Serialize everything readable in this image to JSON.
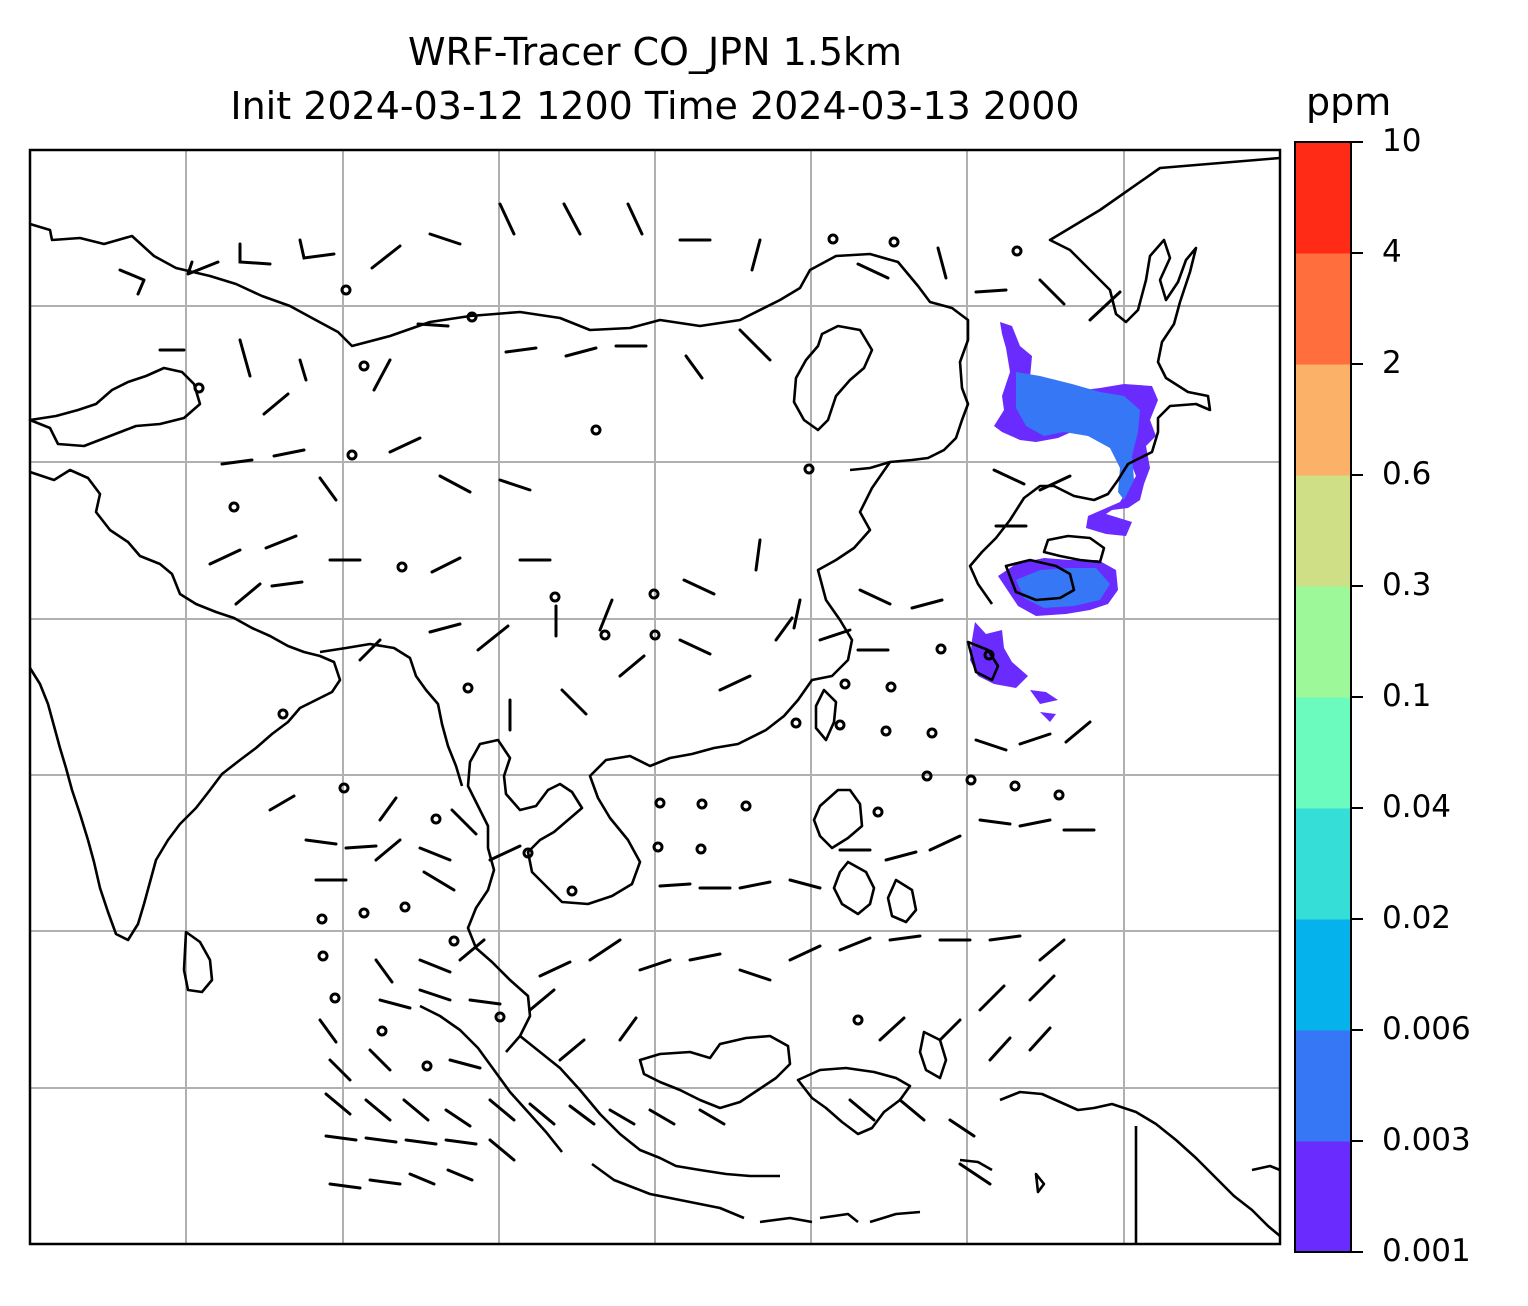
{
  "figure": {
    "title_line1": "WRF-Tracer CO_JPN 1.5km",
    "title_line2": "Init 2024-03-12 1200 Time 2024-03-13 2000"
  },
  "colorbar": {
    "unit": "ppm",
    "ticks": [
      "0.001",
      "0.003",
      "0.006",
      "0.02",
      "0.04",
      "0.1",
      "0.3",
      "0.6",
      "2",
      "4",
      "10"
    ],
    "colors": [
      "#6a2bff",
      "#3577f5",
      "#06b2ec",
      "#35dfd7",
      "#6bfbbe",
      "#9df89a",
      "#cedf85",
      "#fcb168",
      "#ff6e3c",
      "#ff2b16"
    ]
  },
  "map": {
    "frame_color": "#000000",
    "gridline_color": "#b0b0b0",
    "plume_colors": {
      "low": "#6a2bff",
      "mid": "#3577f5"
    },
    "plume_region": "Japan and western North Pacific",
    "wind_barbs": "black barbs over model domain, calm circles near equator"
  }
}
